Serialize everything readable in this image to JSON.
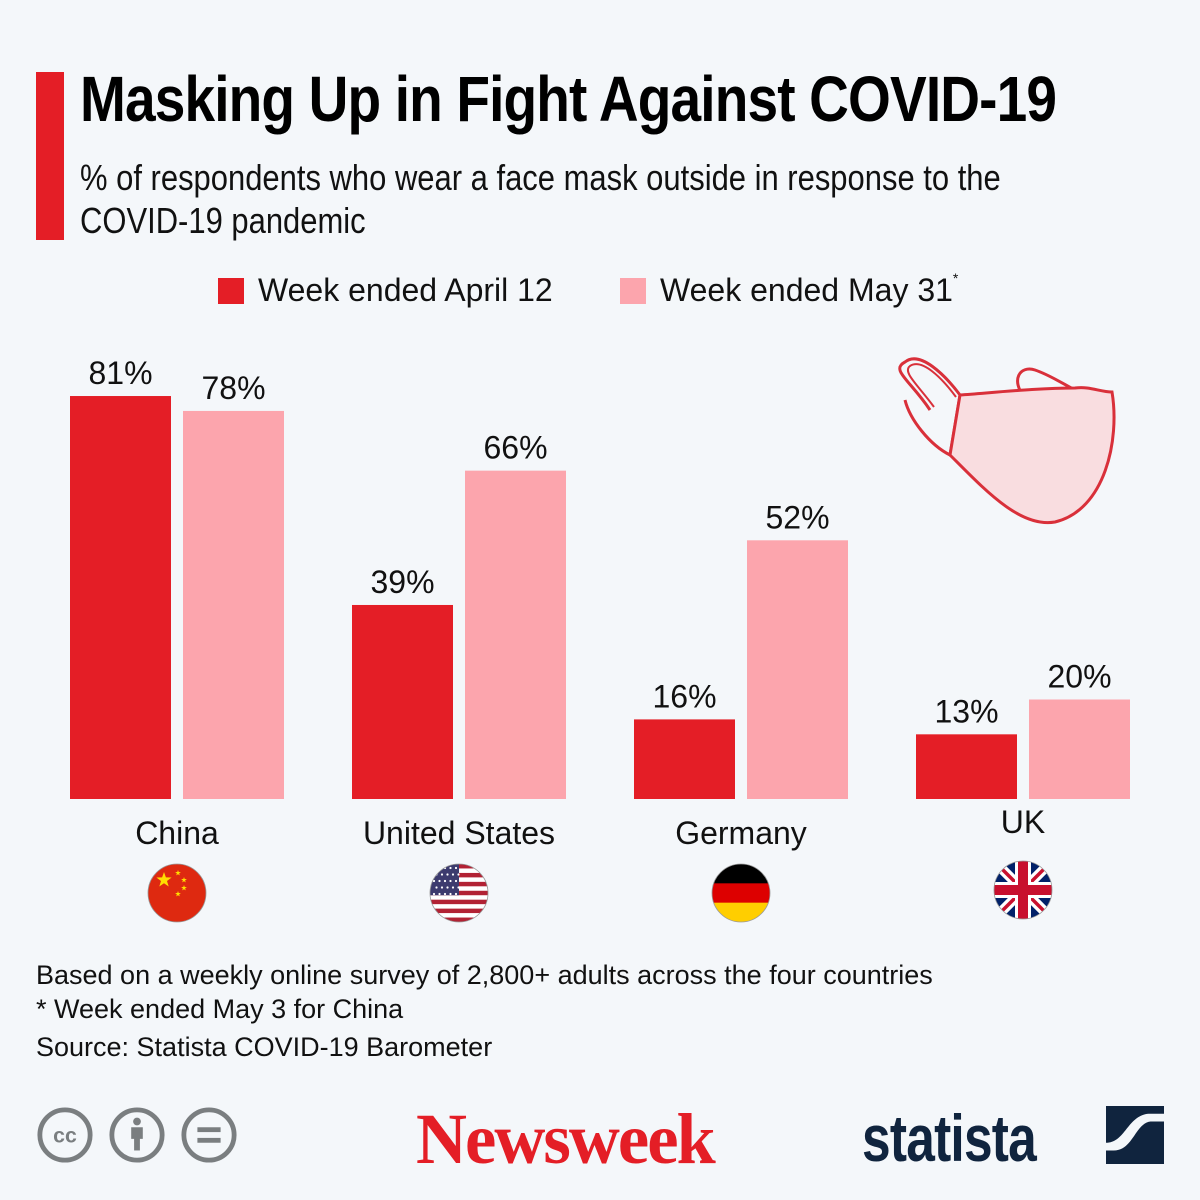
{
  "header": {
    "title": "Masking Up in Fight Against COVID-19",
    "subtitle_line1": "% of respondents who wear a face mask outside in response to the",
    "subtitle_line2": "COVID-19 pandemic"
  },
  "colors": {
    "accent": "#e41e26",
    "series_april": "#e41e26",
    "series_may": "#fca5ad",
    "background": "#f4f7fa",
    "statista_navy": "#10243e"
  },
  "legend": {
    "items": [
      {
        "label": "Week ended April 12",
        "marker": ""
      },
      {
        "label": "Week ended May 31",
        "marker": "*"
      }
    ]
  },
  "chart_data": {
    "type": "bar",
    "title": "Masking Up in Fight Against COVID-19",
    "subtitle": "% of respondents who wear a face mask outside in response to the COVID-19 pandemic",
    "xlabel": "",
    "ylabel": "% of respondents",
    "ylim": [
      0,
      100
    ],
    "grid": false,
    "legend_position": "top-center",
    "categories": [
      "China",
      "United States",
      "Germany",
      "UK"
    ],
    "flags": [
      "china-flag",
      "usa-flag",
      "germany-flag",
      "uk-flag"
    ],
    "series": [
      {
        "name": "Week ended April 12",
        "values": [
          81,
          39,
          16,
          13
        ],
        "labels": [
          "81%",
          "39%",
          "16%",
          "13%"
        ]
      },
      {
        "name": "Week ended May 31*",
        "values": [
          78,
          66,
          52,
          20
        ],
        "labels": [
          "78%",
          "66%",
          "52%",
          "20%"
        ]
      }
    ]
  },
  "notes": {
    "line1": "Based on a weekly online survey of 2,800+ adults across the four countries",
    "line2": "* Week ended May 3 for China",
    "source": "Source: Statista COVID-19 Barometer"
  },
  "footer": {
    "license_icons": [
      "cc-icon",
      "attribution-icon",
      "no-derivatives-icon"
    ],
    "newsweek_logo": "Newsweek",
    "statista_logo": "statista"
  }
}
